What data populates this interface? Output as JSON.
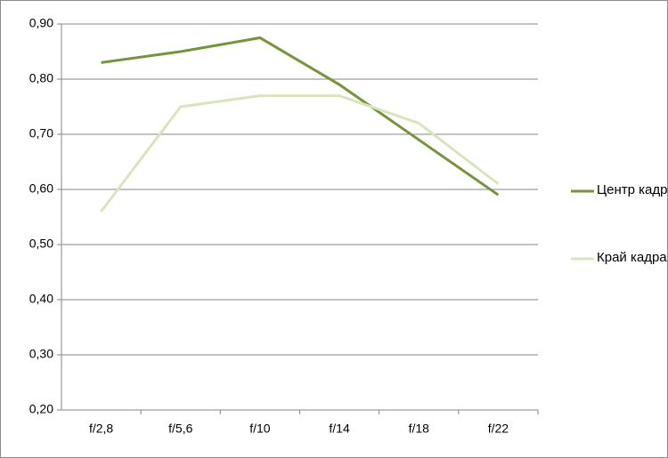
{
  "chart_data": {
    "type": "line",
    "categories": [
      "f/2,8",
      "f/5,6",
      "f/10",
      "f/14",
      "f/18",
      "f/22"
    ],
    "series": [
      {
        "name": "Центр кадра",
        "color": "#77933c",
        "values": [
          0.83,
          0.85,
          0.875,
          0.79,
          0.69,
          0.59
        ]
      },
      {
        "name": "Край кадра",
        "color": "#d7e4bd",
        "values": [
          0.56,
          0.75,
          0.77,
          0.77,
          0.72,
          0.61
        ]
      }
    ],
    "ylim": [
      0.2,
      0.9
    ],
    "yticks": [
      {
        "value": 0.2,
        "label": "0,20"
      },
      {
        "value": 0.3,
        "label": "0,30"
      },
      {
        "value": 0.4,
        "label": "0,40"
      },
      {
        "value": 0.5,
        "label": "0,50"
      },
      {
        "value": 0.6,
        "label": "0,60"
      },
      {
        "value": 0.7,
        "label": "0,70"
      },
      {
        "value": 0.8,
        "label": "0,80"
      },
      {
        "value": 0.9,
        "label": "0,90"
      }
    ],
    "grid": true,
    "legend": "right"
  }
}
